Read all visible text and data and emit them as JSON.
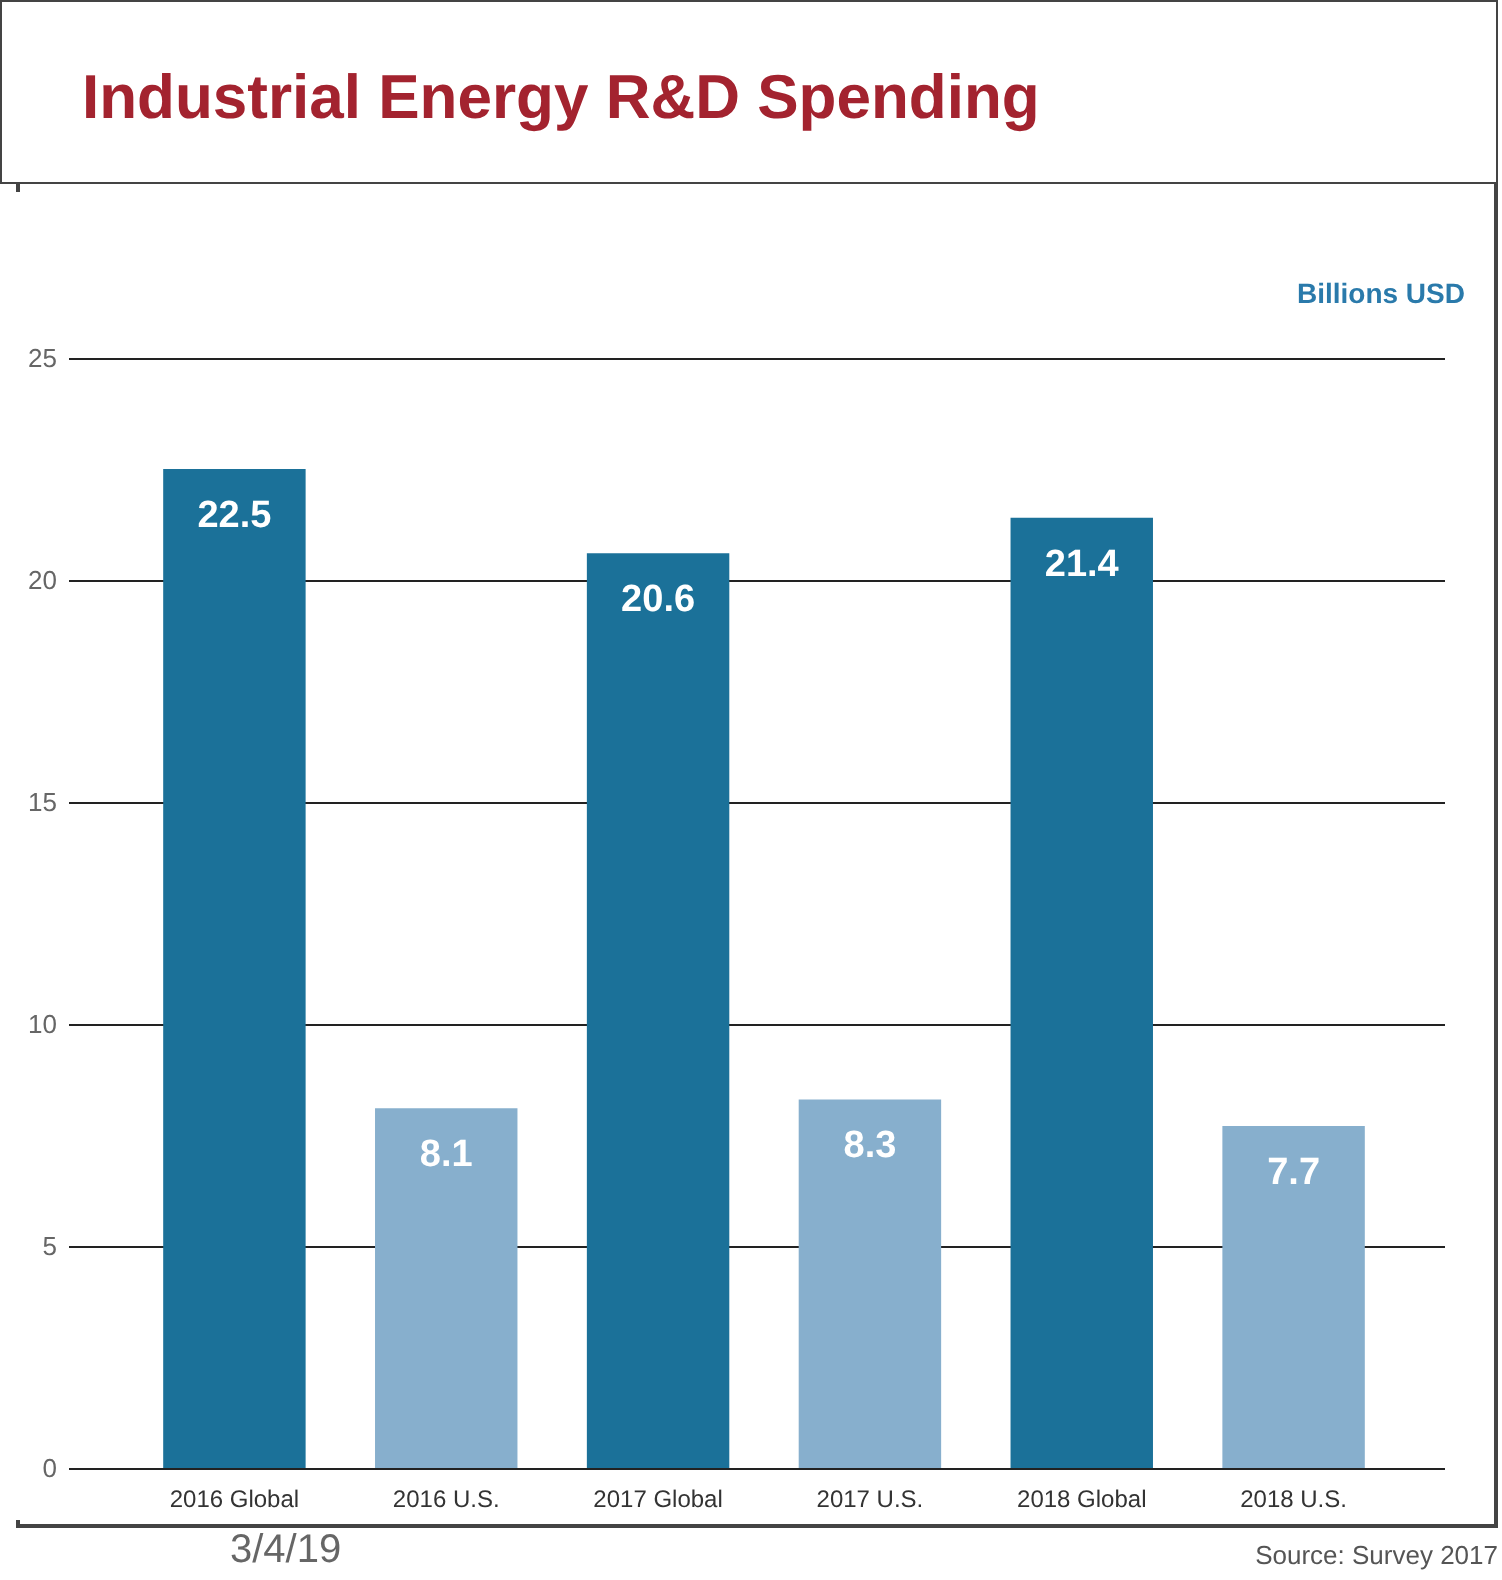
{
  "chart_data": {
    "type": "bar",
    "title": "Industrial Energy R&D Spending",
    "ylabel": "Billions USD",
    "categories": [
      "2016 Global",
      "2016 U.S.",
      "2017 Global",
      "2017 U.S.",
      "2018 Global",
      "2018 U.S."
    ],
    "values": [
      22.5,
      8.1,
      20.6,
      8.3,
      21.4,
      7.7
    ],
    "colors": [
      "#1b7199",
      "#87afcd",
      "#1b7199",
      "#87afcd",
      "#1b7199",
      "#87afcd"
    ],
    "ylim": [
      0,
      25
    ],
    "yticks": [
      0,
      5,
      10,
      15,
      20,
      25
    ],
    "grid": "y",
    "data_labels": true,
    "annotations": [
      "3/4/19",
      "Source: Survey 2017"
    ]
  }
}
